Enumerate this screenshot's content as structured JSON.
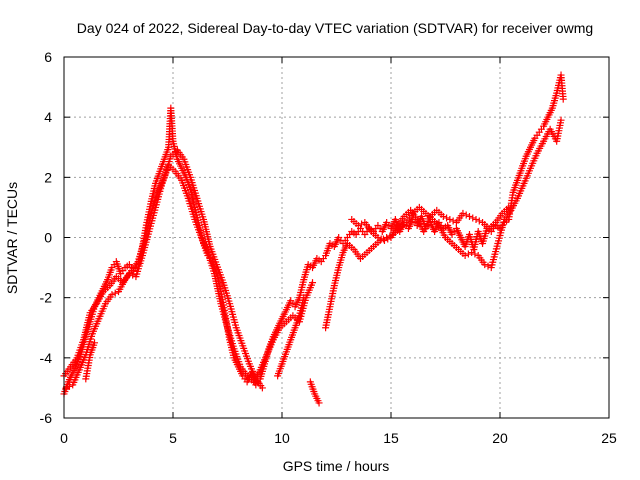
{
  "chart_data": {
    "type": "scatter",
    "title": "Day 024 of 2022, Sidereal Day-to-day VTEC variation (SDTVAR) for receiver owmg",
    "xlabel": "GPS time / hours",
    "ylabel": "SDTVAR / TECUs",
    "xlim": [
      0,
      25
    ],
    "ylim": [
      -6,
      6
    ],
    "xticks": [
      0,
      5,
      10,
      15,
      20,
      25
    ],
    "yticks": [
      -6,
      -4,
      -2,
      0,
      2,
      4,
      6
    ],
    "grid": true,
    "marker": "plus",
    "marker_color": "#ff0000",
    "series": [
      {
        "name": "SDTVAR",
        "segments": [
          [
            [
              0.0,
              -5.2
            ],
            [
              0.2,
              -4.8
            ],
            [
              0.4,
              -4.5
            ],
            [
              0.6,
              -4.2
            ],
            [
              0.8,
              -3.8
            ],
            [
              1.0,
              -3.3
            ],
            [
              1.2,
              -2.8
            ],
            [
              1.4,
              -2.3
            ],
            [
              1.6,
              -2.0
            ],
            [
              1.8,
              -1.7
            ],
            [
              2.0,
              -1.4
            ],
            [
              2.2,
              -1.0
            ],
            [
              2.4,
              -0.8
            ],
            [
              2.6,
              -1.2
            ],
            [
              2.8,
              -1.0
            ],
            [
              3.0,
              -0.9
            ],
            [
              3.2,
              -1.1
            ],
            [
              3.4,
              -0.9
            ],
            [
              3.6,
              -0.3
            ],
            [
              3.8,
              0.5
            ],
            [
              4.0,
              1.2
            ],
            [
              4.2,
              1.8
            ],
            [
              4.4,
              2.2
            ],
            [
              4.6,
              2.6
            ],
            [
              4.8,
              3.0
            ],
            [
              4.9,
              4.3
            ],
            [
              5.0,
              3.2
            ],
            [
              5.2,
              2.6
            ],
            [
              5.4,
              2.3
            ],
            [
              5.6,
              2.0
            ],
            [
              5.8,
              1.6
            ],
            [
              6.0,
              1.0
            ],
            [
              6.2,
              0.4
            ],
            [
              6.4,
              -0.2
            ],
            [
              6.6,
              -0.6
            ],
            [
              6.8,
              -0.8
            ],
            [
              7.0,
              -1.2
            ],
            [
              7.2,
              -1.8
            ],
            [
              7.4,
              -2.6
            ],
            [
              7.6,
              -3.4
            ],
            [
              7.8,
              -4.0
            ],
            [
              8.0,
              -4.3
            ],
            [
              8.2,
              -4.6
            ],
            [
              8.4,
              -4.8
            ],
            [
              8.6,
              -4.5
            ],
            [
              8.8,
              -4.9
            ],
            [
              9.0,
              -4.7
            ],
            [
              9.2,
              -4.2
            ],
            [
              9.4,
              -3.7
            ],
            [
              9.6,
              -3.3
            ],
            [
              9.8,
              -3.0
            ],
            [
              10.0,
              -2.7
            ],
            [
              10.2,
              -2.4
            ],
            [
              10.4,
              -2.1
            ],
            [
              10.6,
              -2.3
            ],
            [
              10.8,
              -2.0
            ],
            [
              11.0,
              -1.4
            ],
            [
              11.2,
              -0.9
            ],
            [
              11.4,
              -1.0
            ],
            [
              11.6,
              -0.7
            ],
            [
              11.8,
              -0.8
            ],
            [
              12.0,
              -0.6
            ],
            [
              12.2,
              -0.2
            ],
            [
              12.4,
              -0.3
            ],
            [
              12.6,
              0.0
            ],
            [
              12.8,
              -0.2
            ],
            [
              13.0,
              0.0
            ],
            [
              13.2,
              0.2
            ],
            [
              13.4,
              0.1
            ],
            [
              13.6,
              0.3
            ],
            [
              13.8,
              0.1
            ],
            [
              14.0,
              0.3
            ],
            [
              14.2,
              0.2
            ],
            [
              14.4,
              0.4
            ],
            [
              14.6,
              0.2
            ],
            [
              14.8,
              0.5
            ],
            [
              15.0,
              0.3
            ],
            [
              15.2,
              0.6
            ],
            [
              15.4,
              0.2
            ],
            [
              15.6,
              0.5
            ],
            [
              15.8,
              0.3
            ],
            [
              16.0,
              0.6
            ],
            [
              16.2,
              0.4
            ],
            [
              16.4,
              0.7
            ],
            [
              16.6,
              0.3
            ],
            [
              16.8,
              0.5
            ],
            [
              17.0,
              0.2
            ],
            [
              17.2,
              0.5
            ],
            [
              17.4,
              0.3
            ],
            [
              17.6,
              0.4
            ],
            [
              17.8,
              0.1
            ],
            [
              18.0,
              0.3
            ],
            [
              18.2,
              0.0
            ],
            [
              18.4,
              -0.3
            ],
            [
              18.6,
              0.1
            ],
            [
              18.8,
              -0.4
            ],
            [
              19.0,
              0.2
            ],
            [
              19.2,
              -0.2
            ],
            [
              19.4,
              0.3
            ],
            [
              19.6,
              0.2
            ],
            [
              19.8,
              0.4
            ],
            [
              20.0,
              0.3
            ],
            [
              20.2,
              0.5
            ],
            [
              20.4,
              0.6
            ],
            [
              20.6,
              1.5
            ],
            [
              20.8,
              1.9
            ],
            [
              21.0,
              2.3
            ],
            [
              21.2,
              2.7
            ],
            [
              21.4,
              3.0
            ],
            [
              21.6,
              3.3
            ],
            [
              21.8,
              3.5
            ],
            [
              22.0,
              3.7
            ],
            [
              22.2,
              4.0
            ],
            [
              22.4,
              4.3
            ],
            [
              22.6,
              4.8
            ],
            [
              22.8,
              5.4
            ],
            [
              22.9,
              4.6
            ]
          ],
          [
            [
              0.0,
              -4.6
            ],
            [
              0.3,
              -4.3
            ],
            [
              0.6,
              -4.0
            ],
            [
              0.9,
              -3.4
            ],
            [
              1.2,
              -2.5
            ],
            [
              1.5,
              -2.2
            ],
            [
              1.8,
              -1.8
            ],
            [
              2.1,
              -1.6
            ],
            [
              2.4,
              -1.3
            ],
            [
              2.7,
              -1.5
            ],
            [
              3.0,
              -1.2
            ],
            [
              3.3,
              -1.3
            ],
            [
              3.6,
              -0.6
            ],
            [
              3.9,
              0.2
            ],
            [
              4.2,
              1.0
            ],
            [
              4.5,
              1.8
            ],
            [
              4.8,
              2.4
            ],
            [
              5.1,
              2.2
            ],
            [
              5.4,
              1.9
            ],
            [
              5.7,
              1.3
            ],
            [
              6.0,
              0.6
            ],
            [
              6.3,
              0.0
            ],
            [
              6.6,
              -0.5
            ],
            [
              6.9,
              -1.2
            ],
            [
              7.2,
              -2.2
            ],
            [
              7.5,
              -3.0
            ],
            [
              7.8,
              -3.7
            ],
            [
              8.1,
              -4.3
            ],
            [
              8.4,
              -4.6
            ],
            [
              8.7,
              -4.8
            ],
            [
              9.0,
              -4.4
            ],
            [
              9.3,
              -3.9
            ],
            [
              9.6,
              -3.4
            ],
            [
              9.9,
              -3.0
            ],
            [
              10.2,
              -2.8
            ],
            [
              10.5,
              -2.6
            ],
            [
              10.8,
              -2.8
            ],
            [
              11.1,
              -2.0
            ],
            [
              11.4,
              -1.5
            ]
          ],
          [
            [
              0.1,
              -5.0
            ],
            [
              0.4,
              -4.9
            ],
            [
              0.7,
              -4.4
            ],
            [
              1.0,
              -3.9
            ],
            [
              1.3,
              -3.2
            ],
            [
              1.6,
              -2.7
            ],
            [
              1.9,
              -2.2
            ],
            [
              2.2,
              -1.9
            ],
            [
              2.5,
              -1.8
            ],
            [
              2.8,
              -1.4
            ],
            [
              3.1,
              -1.1
            ],
            [
              3.4,
              -0.8
            ],
            [
              3.7,
              -0.1
            ],
            [
              4.0,
              0.8
            ],
            [
              4.3,
              1.5
            ],
            [
              4.6,
              2.0
            ],
            [
              4.9,
              2.7
            ],
            [
              5.2,
              2.9
            ],
            [
              5.5,
              2.6
            ],
            [
              5.8,
              2.0
            ],
            [
              6.1,
              1.3
            ],
            [
              6.4,
              0.6
            ],
            [
              6.7,
              -0.3
            ],
            [
              7.0,
              -0.9
            ],
            [
              7.3,
              -1.5
            ],
            [
              7.6,
              -2.2
            ],
            [
              7.9,
              -3.0
            ],
            [
              8.2,
              -3.6
            ],
            [
              8.5,
              -4.2
            ],
            [
              8.8,
              -4.7
            ],
            [
              9.1,
              -5.0
            ]
          ],
          [
            [
              1.0,
              -4.7
            ],
            [
              1.2,
              -3.9
            ],
            [
              1.4,
              -3.5
            ]
          ],
          [
            [
              9.8,
              -4.6
            ],
            [
              10.0,
              -4.2
            ],
            [
              10.2,
              -3.8
            ],
            [
              10.4,
              -3.4
            ],
            [
              10.6,
              -3.0
            ],
            [
              10.8,
              -2.6
            ],
            [
              11.0,
              -2.0
            ]
          ],
          [
            [
              11.3,
              -4.8
            ],
            [
              11.5,
              -5.2
            ],
            [
              11.7,
              -5.5
            ]
          ],
          [
            [
              12.0,
              -3.0
            ],
            [
              12.2,
              -2.3
            ],
            [
              12.4,
              -1.6
            ],
            [
              12.6,
              -1.0
            ],
            [
              12.8,
              -0.5
            ],
            [
              13.0,
              -0.2
            ],
            [
              13.3,
              -0.4
            ],
            [
              13.6,
              -0.7
            ],
            [
              13.9,
              -0.5
            ],
            [
              14.2,
              -0.3
            ],
            [
              14.5,
              -0.1
            ],
            [
              14.8,
              0.0
            ],
            [
              15.1,
              0.1
            ],
            [
              15.4,
              0.3
            ],
            [
              15.7,
              0.5
            ],
            [
              16.0,
              0.8
            ],
            [
              16.3,
              1.0
            ],
            [
              16.6,
              0.8
            ],
            [
              16.9,
              0.6
            ],
            [
              17.2,
              0.4
            ],
            [
              17.5,
              0.0
            ],
            [
              17.8,
              -0.2
            ],
            [
              18.1,
              -0.4
            ],
            [
              18.4,
              -0.6
            ],
            [
              18.7,
              -0.5
            ],
            [
              19.0,
              -0.6
            ],
            [
              19.3,
              -0.9
            ],
            [
              19.6,
              -1.0
            ],
            [
              19.9,
              -0.2
            ],
            [
              20.2,
              0.6
            ],
            [
              20.5,
              0.9
            ],
            [
              20.8,
              1.3
            ],
            [
              21.1,
              1.8
            ],
            [
              21.4,
              2.3
            ],
            [
              21.7,
              2.8
            ],
            [
              22.0,
              3.2
            ],
            [
              22.3,
              3.6
            ],
            [
              22.6,
              3.2
            ],
            [
              22.8,
              3.9
            ]
          ],
          [
            [
              13.2,
              0.6
            ],
            [
              13.5,
              0.4
            ],
            [
              13.8,
              0.5
            ],
            [
              14.1,
              0.2
            ],
            [
              14.4,
              0.0
            ],
            [
              14.7,
              -0.1
            ],
            [
              15.0,
              0.0
            ],
            [
              15.3,
              0.4
            ],
            [
              15.6,
              0.7
            ],
            [
              15.9,
              0.9
            ],
            [
              16.2,
              0.6
            ],
            [
              16.5,
              0.2
            ],
            [
              16.8,
              0.7
            ],
            [
              17.1,
              0.9
            ],
            [
              17.4,
              0.7
            ],
            [
              17.7,
              0.6
            ],
            [
              18.0,
              0.5
            ],
            [
              18.3,
              0.8
            ],
            [
              18.6,
              0.7
            ],
            [
              18.9,
              0.6
            ],
            [
              19.2,
              0.5
            ],
            [
              19.5,
              0.3
            ],
            [
              19.8,
              0.5
            ],
            [
              20.1,
              0.8
            ],
            [
              20.4,
              1.0
            ]
          ]
        ]
      }
    ]
  }
}
